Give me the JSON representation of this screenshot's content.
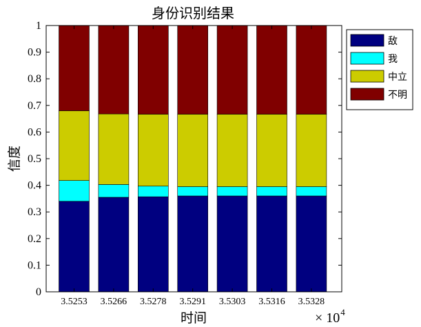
{
  "chart_data": {
    "type": "bar",
    "stacked": true,
    "title": "身份识别结果",
    "xlabel": "时间",
    "ylabel": "信度",
    "x_multiplier": {
      "base": "× 10",
      "exponent": "4"
    },
    "categories": [
      "3.5253",
      "3.5266",
      "3.5278",
      "3.5291",
      "3.5303",
      "3.5316",
      "3.5328"
    ],
    "ylim": [
      0,
      1
    ],
    "yticks": [
      "0",
      "0.1",
      "0.2",
      "0.3",
      "0.4",
      "0.5",
      "0.6",
      "0.7",
      "0.8",
      "0.9",
      "1"
    ],
    "grid": false,
    "legend_position": "top-right",
    "series": [
      {
        "name": "敌",
        "color": "#000080",
        "values": [
          0.34,
          0.355,
          0.357,
          0.36,
          0.36,
          0.36,
          0.36
        ]
      },
      {
        "name": "我",
        "color": "#00FFFF",
        "values": [
          0.078,
          0.048,
          0.04,
          0.035,
          0.035,
          0.035,
          0.035
        ]
      },
      {
        "name": "中立",
        "color": "#CCCC00",
        "values": [
          0.262,
          0.265,
          0.27,
          0.272,
          0.272,
          0.272,
          0.272
        ]
      },
      {
        "name": "不明",
        "color": "#800000",
        "values": [
          0.32,
          0.332,
          0.333,
          0.333,
          0.333,
          0.333,
          0.333
        ]
      }
    ]
  }
}
